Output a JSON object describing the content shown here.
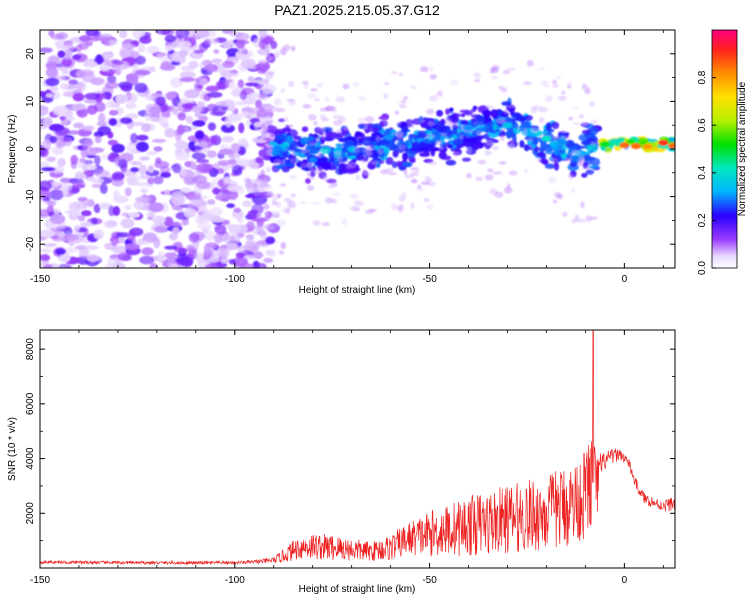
{
  "title": "PAZ1.2025.215.05.37.G12",
  "chart_data": [
    {
      "type": "heatmap",
      "xlabel": "Height of straight line (km)",
      "ylabel": "Frequency (Hz)",
      "xlim": [
        -150,
        13
      ],
      "ylim": [
        -25,
        25
      ],
      "xticks": [
        -150,
        -100,
        -50,
        0
      ],
      "yticks": [
        -20,
        -10,
        0,
        10,
        20
      ],
      "colorbar": {
        "label": "Normalized spectral amplitude",
        "range": [
          0.0,
          1.0
        ],
        "ticks": [
          0.0,
          0.2,
          0.4,
          0.6,
          0.8
        ]
      },
      "ridge": {
        "description_points": [
          [
            -88,
            0
          ],
          [
            -75,
            -1
          ],
          [
            -60,
            1
          ],
          [
            -45,
            3
          ],
          [
            -30,
            5
          ],
          [
            -20,
            2
          ],
          [
            -12,
            -1
          ],
          [
            -5,
            1
          ],
          [
            5,
            1
          ],
          [
            13,
            1
          ]
        ],
        "peak_x_range": [
          -5,
          13
        ],
        "peak_frequency": 1
      }
    },
    {
      "type": "line",
      "xlabel": "Height of straight line (km)",
      "ylabel": "SNR (10 * v/v)",
      "xlim": [
        -150,
        13
      ],
      "ylim": [
        0,
        8700
      ],
      "xticks": [
        -150,
        -100,
        -50,
        0
      ],
      "yticks": [
        2000,
        4000,
        6000,
        8000
      ],
      "color": "#ee2222",
      "envelope": {
        "x": [
          -150,
          -130,
          -110,
          -100,
          -95,
          -90,
          -87,
          -84,
          -80,
          -75,
          -70,
          -65,
          -60,
          -55,
          -50,
          -45,
          -40,
          -35,
          -30,
          -25,
          -20,
          -15,
          -12,
          -10,
          -9,
          -8,
          -7,
          -6,
          -5,
          -3,
          -1,
          1,
          3,
          5,
          8,
          10,
          13
        ],
        "baseline": [
          200,
          180,
          170,
          180,
          200,
          250,
          400,
          600,
          650,
          600,
          550,
          500,
          600,
          900,
          1000,
          1100,
          1200,
          1300,
          1400,
          1500,
          1600,
          1800,
          2000,
          2200,
          2400,
          2600,
          2600,
          3500,
          3800,
          4000,
          4100,
          3800,
          3000,
          2500,
          2300,
          2200,
          2300
        ],
        "spread": [
          80,
          80,
          80,
          80,
          100,
          150,
          400,
          600,
          700,
          700,
          600,
          500,
          700,
          900,
          1200,
          1400,
          1600,
          1700,
          1800,
          1900,
          2000,
          2200,
          2200,
          2400,
          3000,
          2500,
          1800,
          800,
          500,
          400,
          300,
          300,
          300,
          300,
          300,
          300,
          400
        ]
      },
      "peak": {
        "x": -8,
        "y": 8700
      }
    }
  ]
}
